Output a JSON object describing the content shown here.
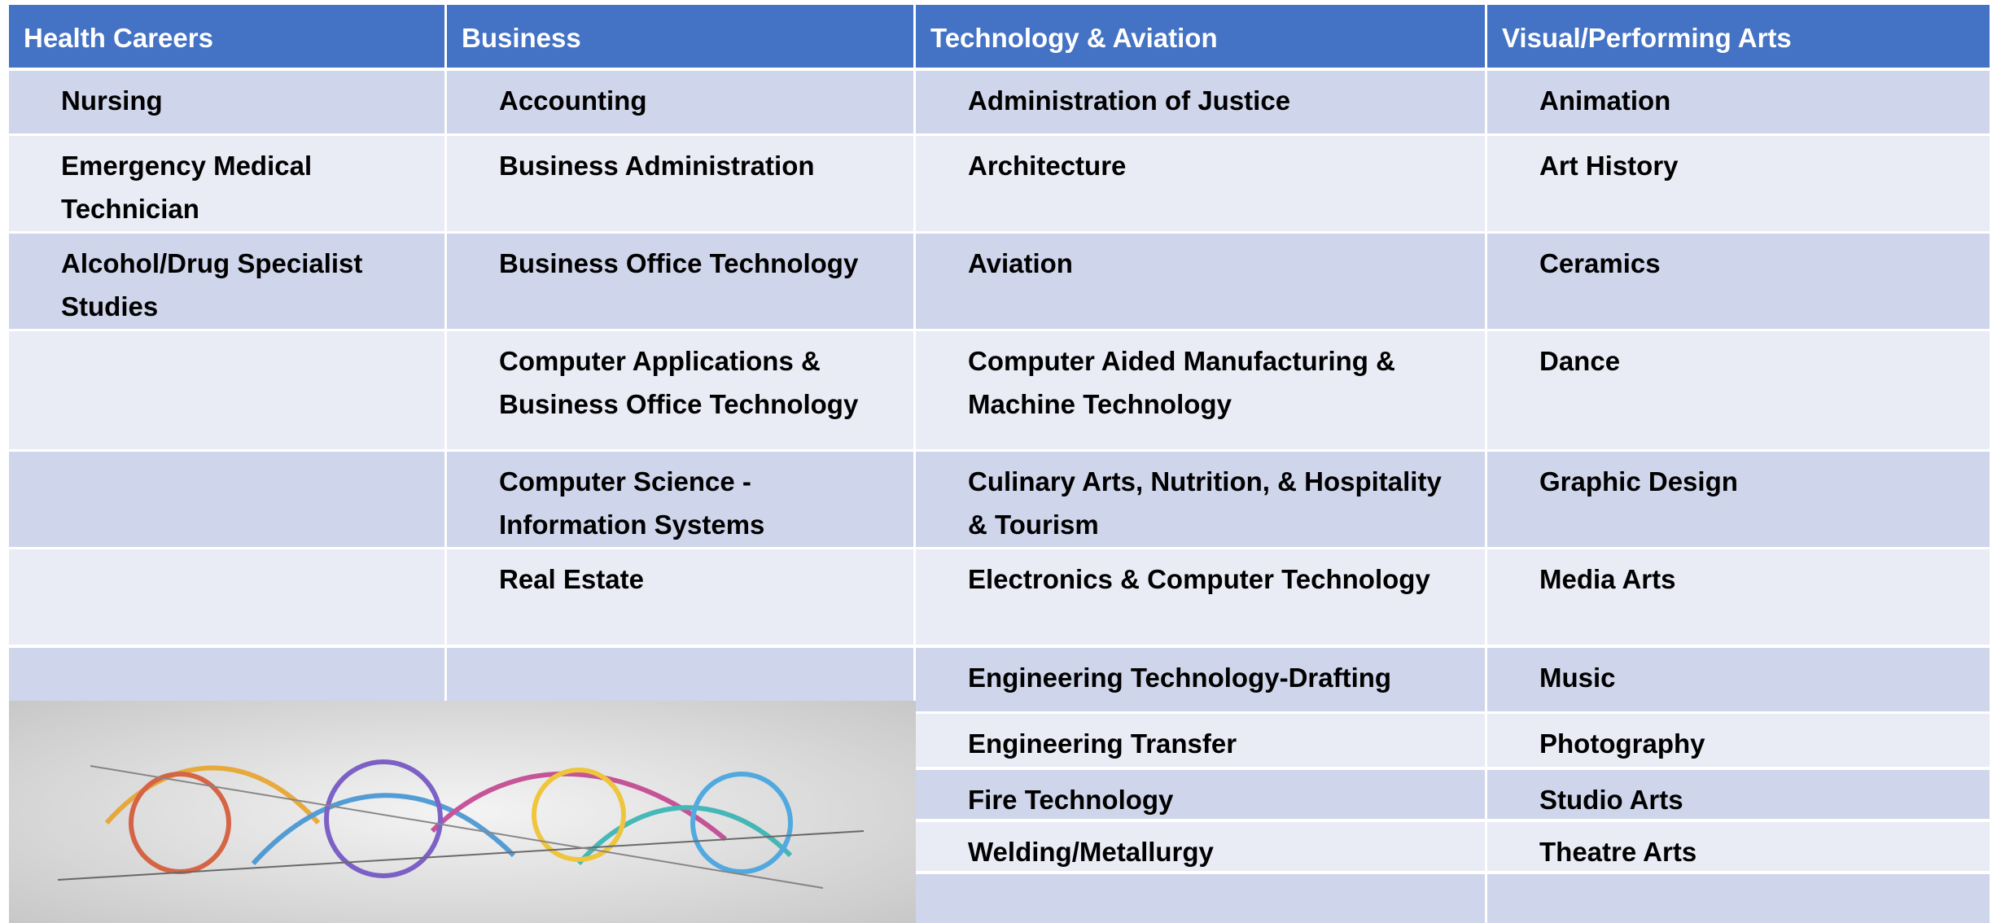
{
  "table": {
    "headers": [
      "Health Careers",
      "Business",
      "Technology & Aviation",
      "Visual/Performing Arts"
    ],
    "rows": [
      [
        "Nursing",
        "Accounting",
        "Administration of Justice",
        "Animation"
      ],
      [
        "Emergency Medical Technician",
        "Business Administration",
        "Architecture",
        "Art History"
      ],
      [
        "Alcohol/Drug Specialist Studies",
        "Business Office Technology",
        "Aviation",
        "Ceramics"
      ],
      [
        null,
        "Computer Applications & Business Office Technology",
        "Computer Aided Manufacturing & Machine Technology",
        "Dance"
      ],
      [
        null,
        "Computer Science - Information Systems",
        "Culinary Arts, Nutrition, & Hospitality & Tourism",
        "Graphic Design"
      ],
      [
        null,
        "Real Estate",
        "Electronics & Computer Technology",
        "Media Arts"
      ],
      [
        null,
        null,
        "Engineering Technology-Drafting",
        "Music"
      ],
      [
        null,
        null,
        "Engineering Transfer",
        "Photography"
      ],
      [
        null,
        null,
        "Fire Technology",
        "Studio Arts"
      ],
      [
        null,
        null,
        "Welding/Metallurgy",
        "Theatre Arts"
      ],
      [
        null,
        null,
        null,
        null
      ]
    ]
  }
}
